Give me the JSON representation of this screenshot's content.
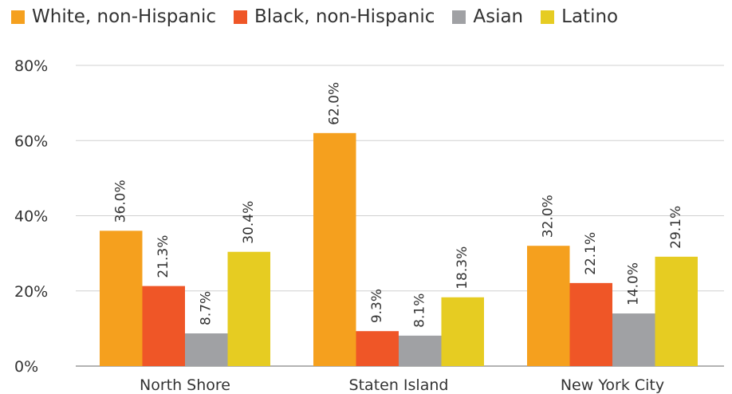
{
  "chart_data": {
    "type": "bar",
    "categories": [
      "North Shore",
      "Staten Island",
      "New York City"
    ],
    "series": [
      {
        "name": "White, non-Hispanic",
        "color": "#f5a01e",
        "values": [
          36.0,
          62.0,
          32.0
        ],
        "labels": [
          "36.0%",
          "62.0%",
          "32.0%"
        ]
      },
      {
        "name": "Black, non-Hispanic",
        "color": "#ef5627",
        "values": [
          21.3,
          9.3,
          22.1
        ],
        "labels": [
          "21.3%",
          "9.3%",
          "22.1%"
        ]
      },
      {
        "name": "Asian",
        "color": "#a0a1a4",
        "values": [
          8.7,
          8.1,
          14.0
        ],
        "labels": [
          "8.7%",
          "8.1%",
          "14.0%"
        ]
      },
      {
        "name": "Latino",
        "color": "#e6cc22",
        "values": [
          30.4,
          18.3,
          29.1
        ],
        "labels": [
          "30.4%",
          "18.3%",
          "29.1%"
        ]
      }
    ],
    "yticks": [
      0,
      20,
      40,
      60,
      80
    ],
    "ytick_labels": [
      "0%",
      "20%",
      "40%",
      "60%",
      "80%"
    ],
    "ylim": [
      0,
      80
    ],
    "grid": true,
    "legend_position": "top-left"
  }
}
